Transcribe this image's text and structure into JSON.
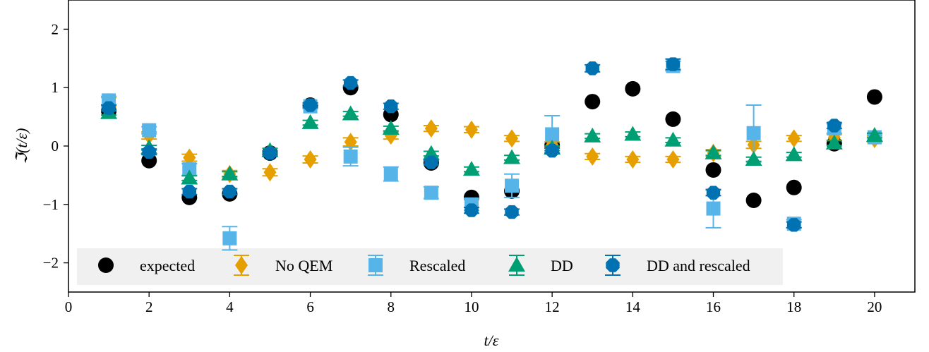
{
  "chart_data": {
    "type": "scatter",
    "xlabel": "t/ε",
    "ylabel": "ℑ(t/ε)",
    "xlim": [
      0,
      21
    ],
    "ylim": [
      -2.5,
      2.5
    ],
    "x_ticks": [
      0,
      2,
      4,
      6,
      8,
      10,
      12,
      14,
      16,
      18,
      20
    ],
    "y_ticks": [
      2,
      1,
      0,
      -1,
      -2
    ],
    "y_tick_labels": [
      "2",
      "1",
      "0",
      "−1",
      "−2"
    ],
    "legend_position": "lower-center",
    "series": [
      {
        "name": "expected",
        "color": "#000000",
        "marker": "circle",
        "errorbars": false,
        "x": [
          1,
          2,
          3,
          4,
          5,
          6,
          7,
          8,
          9,
          10,
          11,
          12,
          13,
          14,
          15,
          16,
          17,
          18,
          19,
          20
        ],
        "y": [
          0.6,
          -0.25,
          -0.88,
          -0.82,
          -0.12,
          0.7,
          1.0,
          0.54,
          -0.29,
          -0.88,
          -0.77,
          0.01,
          0.76,
          0.98,
          0.46,
          -0.41,
          -0.93,
          -0.71,
          0.04,
          0.84
        ],
        "err": [
          0,
          0,
          0,
          0,
          0,
          0,
          0,
          0,
          0,
          0,
          0,
          0,
          0,
          0,
          0,
          0,
          0,
          0,
          0,
          0
        ]
      },
      {
        "name": "No QEM",
        "color": "#e69f00",
        "marker": "diamond",
        "errorbars": true,
        "x": [
          1,
          2,
          3,
          4,
          5,
          6,
          7,
          8,
          9,
          10,
          11,
          12,
          13,
          14,
          15,
          16,
          17,
          18,
          19,
          20
        ],
        "y": [
          0.75,
          0.18,
          -0.2,
          -0.48,
          -0.45,
          -0.23,
          0.07,
          0.18,
          0.3,
          0.28,
          0.13,
          0.02,
          -0.18,
          -0.23,
          -0.23,
          -0.12,
          0.02,
          0.13,
          0.15,
          0.12
        ],
        "err": [
          0.08,
          0.06,
          0.06,
          0.06,
          0.06,
          0.06,
          0.07,
          0.06,
          0.05,
          0.05,
          0.05,
          0.05,
          0.05,
          0.05,
          0.05,
          0.06,
          0.06,
          0.05,
          0.05,
          0.05
        ]
      },
      {
        "name": "Rescaled",
        "color": "#56b4e9",
        "marker": "square",
        "errorbars": true,
        "x": [
          1,
          2,
          3,
          4,
          6,
          7,
          8,
          9,
          10,
          11,
          12,
          15,
          16,
          17,
          18,
          19,
          20
        ],
        "y": [
          0.78,
          0.27,
          -0.4,
          -1.58,
          0.68,
          -0.18,
          -0.48,
          -0.8,
          -1.0,
          -0.68,
          0.2,
          1.37,
          -1.07,
          0.22,
          -1.33,
          0.3,
          0.15
        ],
        "err": [
          0.07,
          0.06,
          0.1,
          0.2,
          0.04,
          0.16,
          0.12,
          0.1,
          0.1,
          0.2,
          0.32,
          0.08,
          0.33,
          0.48,
          0.07,
          0.08,
          0.05
        ]
      },
      {
        "name": "DD",
        "color": "#009e73",
        "marker": "triangle",
        "errorbars": true,
        "x": [
          1,
          2,
          3,
          4,
          5,
          6,
          7,
          8,
          9,
          10,
          11,
          12,
          13,
          14,
          15,
          16,
          17,
          18,
          19,
          20
        ],
        "y": [
          0.57,
          -0.03,
          -0.55,
          -0.48,
          -0.08,
          0.4,
          0.55,
          0.3,
          -0.13,
          -0.4,
          -0.2,
          -0.04,
          0.17,
          0.2,
          0.1,
          -0.12,
          -0.23,
          -0.15,
          0.05,
          0.18
        ],
        "err": [
          0.04,
          0.04,
          0.04,
          0.04,
          0.04,
          0.04,
          0.04,
          0.04,
          0.04,
          0.04,
          0.04,
          0.04,
          0.04,
          0.04,
          0.04,
          0.04,
          0.04,
          0.04,
          0.04,
          0.04
        ]
      },
      {
        "name": "DD and rescaled",
        "color": "#0072b2",
        "marker": "octagon",
        "errorbars": true,
        "x": [
          1,
          2,
          3,
          4,
          5,
          6,
          7,
          8,
          9,
          10,
          11,
          12,
          13,
          15,
          16,
          18,
          19
        ],
        "y": [
          0.65,
          -0.1,
          -0.78,
          -0.78,
          -0.12,
          0.7,
          1.08,
          0.68,
          -0.28,
          -1.1,
          -1.13,
          -0.08,
          1.33,
          1.4,
          -0.8,
          -1.35,
          0.35
        ],
        "err": [
          0.05,
          0.05,
          0.05,
          0.05,
          0.04,
          0.04,
          0.05,
          0.05,
          0.04,
          0.05,
          0.05,
          0.04,
          0.06,
          0.09,
          0.05,
          0.05,
          0.05
        ]
      }
    ]
  }
}
